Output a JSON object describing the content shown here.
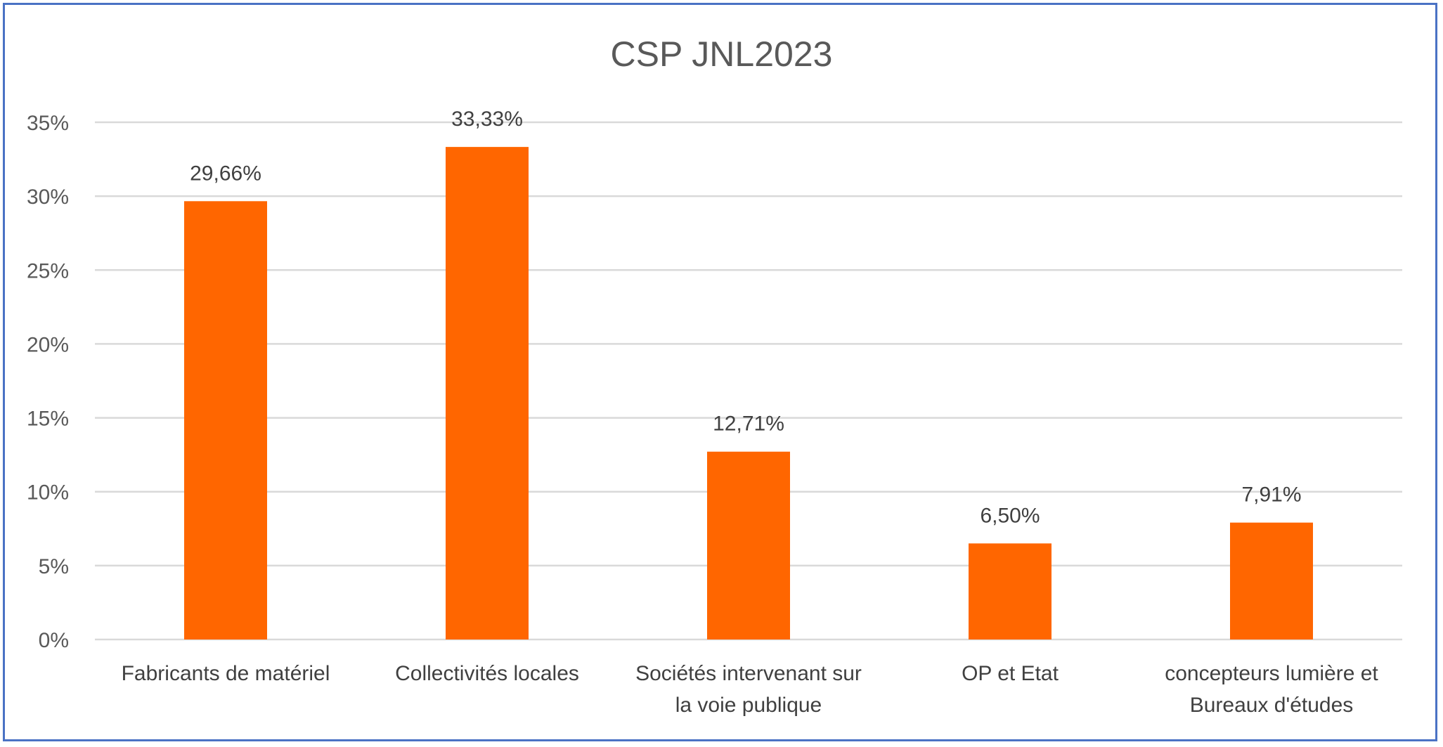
{
  "chart_data": {
    "type": "bar",
    "title": "CSP JNL2023",
    "categories": [
      [
        "Fabricants de matériel"
      ],
      [
        "Collectivités locales"
      ],
      [
        "Sociétés intervenant sur",
        "la voie publique"
      ],
      [
        "OP et Etat"
      ],
      [
        "concepteurs lumière et",
        "Bureaux d'études"
      ]
    ],
    "values": [
      29.66,
      33.33,
      12.71,
      6.5,
      7.91
    ],
    "data_labels": [
      "29,66%",
      "33,33%",
      "12,71%",
      "6,50%",
      "7,91%"
    ],
    "yticks": [
      "0%",
      "5%",
      "10%",
      "15%",
      "20%",
      "25%",
      "30%",
      "35%"
    ],
    "ylim": [
      0,
      35
    ],
    "grid": true,
    "legend": "none",
    "colors": {
      "bar": "#ff6600",
      "grid": "#d9d9d9",
      "frame": "#4a72c4"
    }
  }
}
